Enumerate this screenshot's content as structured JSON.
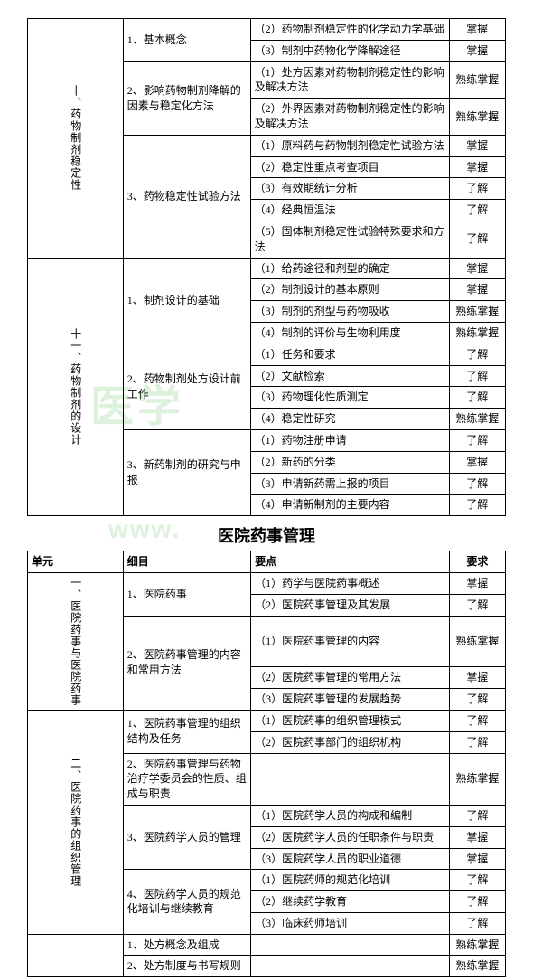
{
  "watermark_text": "医学",
  "watermark_url": "www.",
  "section2_title": "医院药事管理",
  "headers": {
    "unit": "单元",
    "sub": "细目",
    "point": "要点",
    "req": "要求"
  },
  "table1": {
    "unit10": "十、药物制剂稳定性",
    "unit11": "十一、药物制剂的设计",
    "subs": {
      "s1": "1、基本概念",
      "s2": "2、影响药物制剂降解的因素与稳定化方法",
      "s3": "3、药物稳定性试验方法",
      "s4": "1、制剂设计的基础",
      "s5": "2、药物制剂处方设计前工作",
      "s6": "3、新药制剂的研究与申报"
    },
    "rows": [
      {
        "p": "（2）药物制剂稳定性的化学动力学基础",
        "r": "掌握"
      },
      {
        "p": "（3）制剂中药物化学降解途径",
        "r": "掌握"
      },
      {
        "p": "（1）处方因素对药物制剂稳定性的影响及解决方法",
        "r": "熟练掌握"
      },
      {
        "p": "（2）外界因素对药物制剂稳定性的影响及解决方法",
        "r": "熟练掌握"
      },
      {
        "p": "（1）原料药与药物制剂稳定性试验方法",
        "r": "掌握"
      },
      {
        "p": "（2）稳定性重点考查项目",
        "r": "掌握"
      },
      {
        "p": "（3）有效期统计分析",
        "r": "了解"
      },
      {
        "p": "（4）经典恒温法",
        "r": "了解"
      },
      {
        "p": "（5）固体制剂稳定性试验特殊要求和方法",
        "r": "了解"
      },
      {
        "p": "（1）给药途径和剂型的确定",
        "r": "掌握"
      },
      {
        "p": "（2）制剂设计的基本原则",
        "r": "掌握"
      },
      {
        "p": "（3）制剂的剂型与药物吸收",
        "r": "熟练掌握"
      },
      {
        "p": "（4）制剂的评价与生物利用度",
        "r": "熟练掌握"
      },
      {
        "p": "（1）任务和要求",
        "r": "了解"
      },
      {
        "p": "（2）文献检索",
        "r": "了解"
      },
      {
        "p": "（3）药物理化性质测定",
        "r": "了解"
      },
      {
        "p": "（4）稳定性研究",
        "r": "熟练掌握"
      },
      {
        "p": "（1）药物注册申请",
        "r": "了解"
      },
      {
        "p": "（2）新药的分类",
        "r": "掌握"
      },
      {
        "p": "（3）申请新药需上报的项目",
        "r": "了解"
      },
      {
        "p": "（4）申请新制剂的主要内容",
        "r": "了解"
      }
    ]
  },
  "table2": {
    "unit1": "一、医院药事与医院药事",
    "unit2": "二、医院药事的组织管理",
    "subs": {
      "s1": "1、医院药事",
      "s2": "2、医院药事管理的内容和常用方法",
      "s3": "1、医院药事管理的组织结构及任务",
      "s4": "2、医院药事管理与药物治疗学委员会的性质、组成与职责",
      "s5": "3、医院药学人员的管理",
      "s6": "4、医院药学人员的规范化培训与继续教育",
      "s7": "1、处方概念及组成",
      "s8": "2、处方制度与书写规则"
    },
    "rows": [
      {
        "p": "（1）药学与医院药事概述",
        "r": "掌握"
      },
      {
        "p": "（2）医院药事管理及其发展",
        "r": "了解"
      },
      {
        "p": "（1）医院药事管理的内容",
        "r": "熟练掌握"
      },
      {
        "p": "（2）医院药事管理的常用方法",
        "r": "掌握"
      },
      {
        "p": "（3）医院药事管理的发展趋势",
        "r": "了解"
      },
      {
        "p": "（1）医院药事的组织管理模式",
        "r": "了解"
      },
      {
        "p": "（2）医院药事部门的组织机构",
        "r": "了解"
      },
      {
        "p": "",
        "r": "熟练掌握"
      },
      {
        "p": "（1）医院药学人员的构成和编制",
        "r": "了解"
      },
      {
        "p": "（2）医院药学人员的任职条件与职责",
        "r": "掌握"
      },
      {
        "p": "（3）医院药学人员的职业道德",
        "r": "掌握"
      },
      {
        "p": "（1）医院药师的规范化培训",
        "r": "了解"
      },
      {
        "p": "（2）继续药学教育",
        "r": "了解"
      },
      {
        "p": "（3）临床药师培训",
        "r": "了解"
      },
      {
        "p": "",
        "r": "熟练掌握"
      },
      {
        "p": "",
        "r": "熟练掌握"
      }
    ]
  }
}
